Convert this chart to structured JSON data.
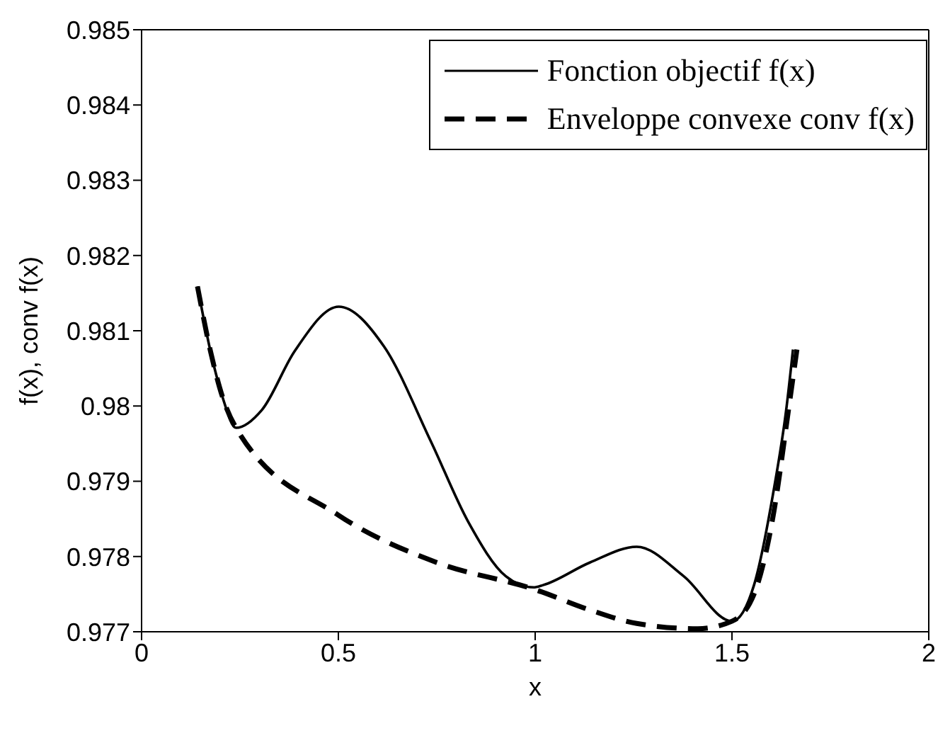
{
  "chart_data": {
    "type": "line",
    "xlabel": "x",
    "ylabel": "f(x), conv f(x)",
    "xlim": [
      0,
      2
    ],
    "xticks": [
      0,
      0.5,
      1,
      1.5,
      2
    ],
    "ylim": [
      0.977,
      0.985
    ],
    "yticks": [
      0.977,
      0.978,
      0.979,
      0.98,
      0.981,
      0.982,
      0.983,
      0.984,
      0.985
    ],
    "legend": "top right",
    "marker": "none",
    "series": [
      {
        "name": "Fonction objectif f(x)",
        "color": "#000000",
        "line_style": "solid",
        "x": [
          0.142,
          0.175,
          0.205,
          0.24,
          0.306,
          0.389,
          0.501,
          0.616,
          0.735,
          0.83,
          0.925,
          0.996,
          1.02,
          1.139,
          1.258,
          1.377,
          1.5,
          1.556,
          1.604,
          1.639,
          1.655
        ],
        "values": [
          0.98159,
          0.98073,
          0.98013,
          0.97971,
          0.97995,
          0.98073,
          0.98132,
          0.98079,
          0.97953,
          0.97846,
          0.97774,
          0.97759,
          0.97762,
          0.97792,
          0.97813,
          0.97774,
          0.97714,
          0.97762,
          0.97882,
          0.98,
          0.98075
        ]
      },
      {
        "name": "Enveloppe convexe conv f(x)",
        "color": "#000000",
        "line_style": "dashed",
        "x": [
          0.142,
          0.175,
          0.205,
          0.24,
          0.5,
          0.75,
          1.0,
          1.139,
          1.258,
          1.413,
          1.5,
          1.556,
          1.604,
          1.645,
          1.665
        ],
        "values": [
          0.98159,
          0.98073,
          0.98013,
          0.97971,
          0.97855,
          0.97792,
          0.97756,
          0.97729,
          0.97711,
          0.97704,
          0.97714,
          0.9775,
          0.97852,
          0.98,
          0.98075
        ]
      }
    ]
  }
}
